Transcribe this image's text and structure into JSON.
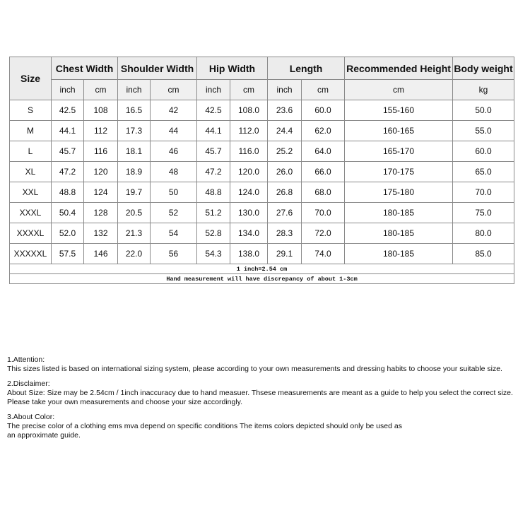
{
  "table": {
    "headers": [
      "Size",
      "Chest Width",
      "Shoulder Width",
      "Hip Width",
      "Length",
      "Recommended Height",
      "Body weight"
    ],
    "units": [
      "inch",
      "cm",
      "inch",
      "cm",
      "inch",
      "cm",
      "inch",
      "cm",
      "cm",
      "kg"
    ],
    "rows": [
      [
        "S",
        "42.5",
        "108",
        "16.5",
        "42",
        "42.5",
        "108.0",
        "23.6",
        "60.0",
        "155-160",
        "50.0"
      ],
      [
        "M",
        "44.1",
        "112",
        "17.3",
        "44",
        "44.1",
        "112.0",
        "24.4",
        "62.0",
        "160-165",
        "55.0"
      ],
      [
        "L",
        "45.7",
        "116",
        "18.1",
        "46",
        "45.7",
        "116.0",
        "25.2",
        "64.0",
        "165-170",
        "60.0"
      ],
      [
        "XL",
        "47.2",
        "120",
        "18.9",
        "48",
        "47.2",
        "120.0",
        "26.0",
        "66.0",
        "170-175",
        "65.0"
      ],
      [
        "XXL",
        "48.8",
        "124",
        "19.7",
        "50",
        "48.8",
        "124.0",
        "26.8",
        "68.0",
        "175-180",
        "70.0"
      ],
      [
        "XXXL",
        "50.4",
        "128",
        "20.5",
        "52",
        "51.2",
        "130.0",
        "27.6",
        "70.0",
        "180-185",
        "75.0"
      ],
      [
        "XXXXL",
        "52.0",
        "132",
        "21.3",
        "54",
        "52.8",
        "134.0",
        "28.3",
        "72.0",
        "180-185",
        "80.0"
      ],
      [
        "XXXXXL",
        "57.5",
        "146",
        "22.0",
        "56",
        "54.3",
        "138.0",
        "29.1",
        "74.0",
        "180-185",
        "85.0"
      ]
    ],
    "note1": "1 inch=2.54 cm",
    "note2": "Hand measurement will have discrepancy of about 1-3cm"
  },
  "notes": [
    {
      "title": "1.Attention:",
      "lines": [
        "This sizes listed is based on international sizing system, please according to your own measurements and dressing habits to choose your suitable size."
      ]
    },
    {
      "title": "2.Disclaimer:",
      "lines": [
        "About Size: Size may be 2.54cm / 1inch inaccuracy due to hand measuer. Thsese measurements are meant as a guide to help you select the correct size.",
        "Please take your own measurements and choose your size accordingly."
      ]
    },
    {
      "title": "3.About Color:",
      "lines": [
        "The precise color of a clothing ems mva depend on specific conditions The items colors depicted should only be used as",
        "an approximate guide."
      ]
    }
  ]
}
